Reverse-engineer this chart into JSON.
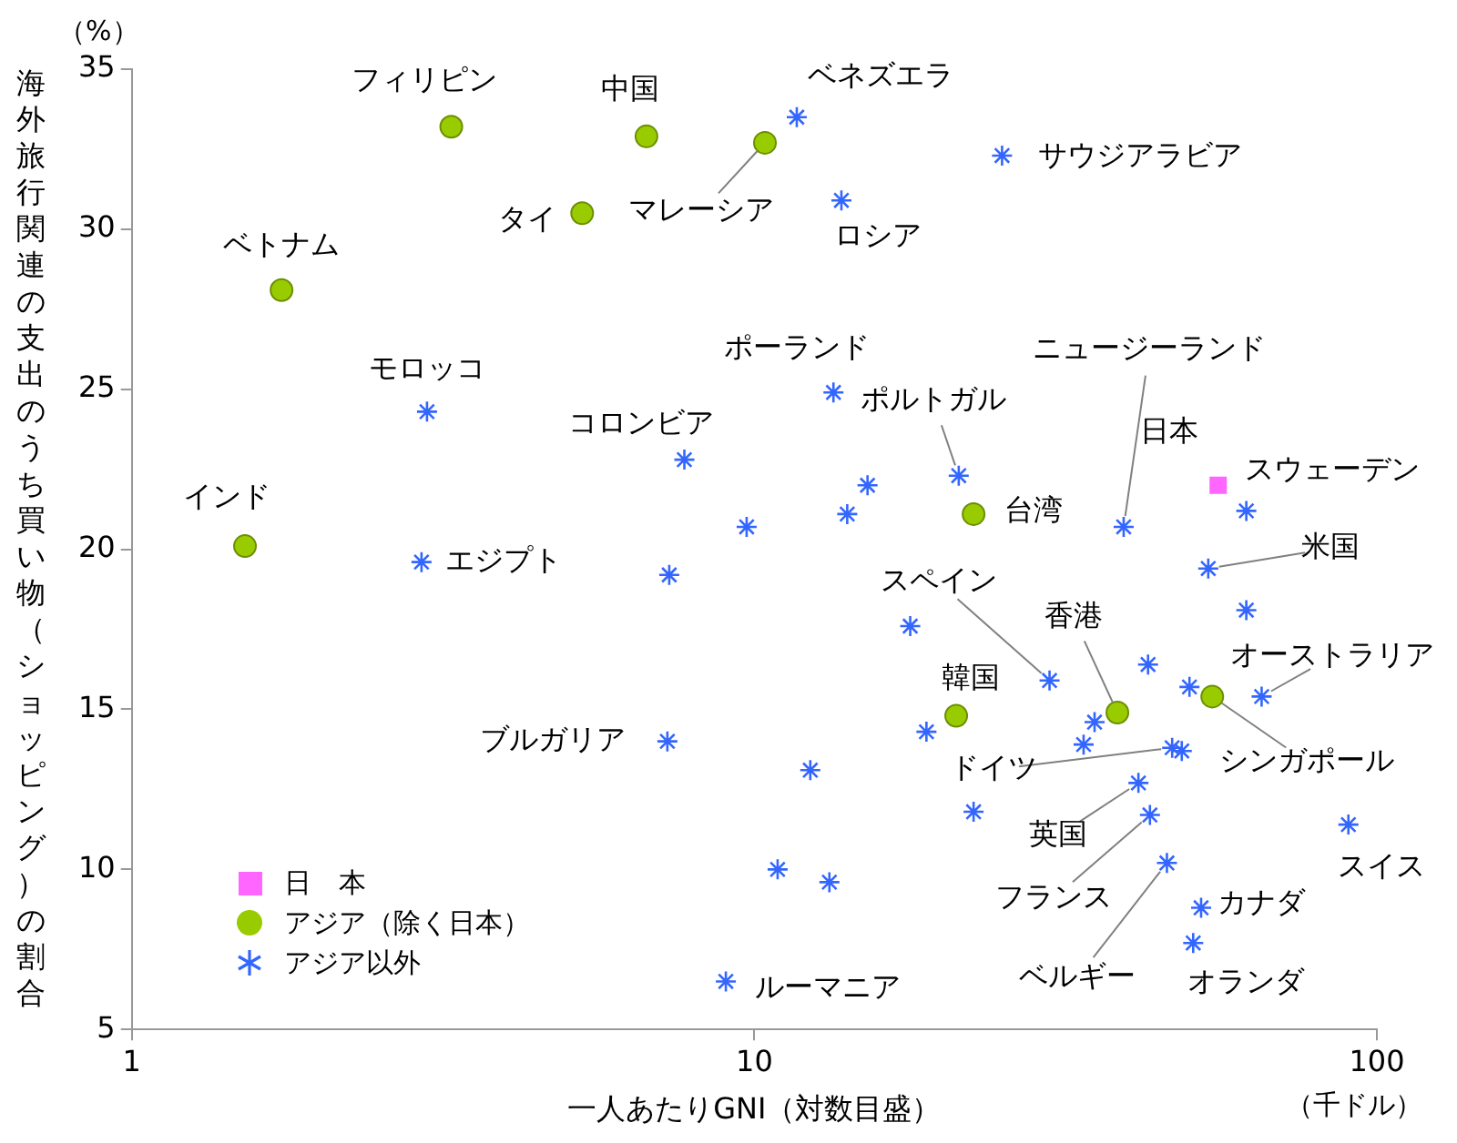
{
  "chart_data": {
    "type": "scatter",
    "xlabel": "一人あたりGNI（対数目盛）",
    "ylabel": "海外旅行関連の支出のうち買い物（ショッピング）の割合",
    "log": "x",
    "xlim": [
      1,
      100
    ],
    "xticks": [
      1,
      10,
      100
    ],
    "ylim": [
      5,
      35
    ],
    "yticks": [
      5,
      10,
      15,
      20,
      25,
      30,
      35
    ],
    "grid": false,
    "legend": "bottom left",
    "series": [
      {
        "name": "日　本",
        "color": "#ff66ff",
        "marker": "square",
        "x": [
          55.6
        ],
        "values": [
          22.0
        ]
      },
      {
        "name": "アジア（除く日本）",
        "color": "#99cc00",
        "marker": "circle",
        "x": [
          3.26,
          6.71,
          10.4,
          5.29,
          1.74,
          1.52,
          22.5,
          21.1,
          38.3,
          54.4
        ],
        "values": [
          33.2,
          32.9,
          32.7,
          30.5,
          28.1,
          20.1,
          21.1,
          14.8,
          14.9,
          15.4
        ]
      },
      {
        "name": "アジア以外",
        "color": "#3366ff",
        "marker": "cross",
        "x": [
          11.7,
          25.0,
          13.8,
          2.98,
          7.72,
          2.92,
          7.3,
          13.4,
          21.3,
          15.2,
          14.1,
          9.72,
          39.2,
          61.7,
          53.6,
          61.7,
          17.8,
          29.8,
          42.9,
          50.0,
          65.3,
          35.2,
          33.8,
          46.9,
          48.6,
          41.4,
          43.2,
          46.0,
          52.2,
          50.7,
          90.0,
          18.9,
          12.3,
          22.5,
          10.9,
          13.2,
          9.0,
          7.25
        ],
        "values": [
          33.5,
          32.3,
          30.9,
          24.3,
          22.8,
          19.6,
          19.2,
          24.9,
          22.3,
          22.0,
          21.1,
          20.7,
          20.7,
          21.2,
          19.4,
          18.1,
          17.6,
          15.9,
          16.4,
          15.7,
          15.4,
          14.6,
          13.9,
          13.8,
          13.7,
          12.7,
          11.7,
          10.2,
          8.8,
          7.7,
          11.4,
          14.3,
          13.1,
          11.8,
          10.0,
          9.6,
          6.5,
          14.0
        ]
      }
    ],
    "annotations": [
      {
        "text": "フィリピン",
        "x": 3.26,
        "y": 33.2
      },
      {
        "text": "中国",
        "x": 6.71,
        "y": 32.9
      },
      {
        "text": "ベネズエラ",
        "x": 11.7,
        "y": 33.5
      },
      {
        "text": "マレーシア",
        "x": 10.4,
        "y": 32.7
      },
      {
        "text": "タイ",
        "x": 5.29,
        "y": 30.5
      },
      {
        "text": "ロシア",
        "x": 13.8,
        "y": 30.9
      },
      {
        "text": "サウジアラビア",
        "x": 25.0,
        "y": 32.3
      },
      {
        "text": "ベトナム",
        "x": 1.74,
        "y": 28.1
      },
      {
        "text": "モロッコ",
        "x": 2.98,
        "y": 24.3
      },
      {
        "text": "ポーランド",
        "x": 13.4,
        "y": 24.9
      },
      {
        "text": "ニュージーランド",
        "x": 39.2,
        "y": 20.7
      },
      {
        "text": "コロンビア",
        "x": 7.72,
        "y": 22.8
      },
      {
        "text": "ポルトガル",
        "x": 21.3,
        "y": 22.3
      },
      {
        "text": "日本",
        "x": 55.6,
        "y": 22.0
      },
      {
        "text": "スウェーデン",
        "x": 61.7,
        "y": 21.2
      },
      {
        "text": "インド",
        "x": 1.52,
        "y": 20.1
      },
      {
        "text": "台湾",
        "x": 22.5,
        "y": 21.1
      },
      {
        "text": "米国",
        "x": 53.6,
        "y": 19.4
      },
      {
        "text": "エジプト",
        "x": 2.92,
        "y": 19.6
      },
      {
        "text": "スペイン",
        "x": 29.8,
        "y": 15.9
      },
      {
        "text": "香港",
        "x": 38.3,
        "y": 14.9
      },
      {
        "text": "韓国",
        "x": 21.1,
        "y": 14.8
      },
      {
        "text": "オーストラリア",
        "x": 65.3,
        "y": 15.4
      },
      {
        "text": "ブルガリア",
        "x": 7.25,
        "y": 14.0
      },
      {
        "text": "ドイツ",
        "x": 46.9,
        "y": 13.8
      },
      {
        "text": "シンガポール",
        "x": 54.4,
        "y": 15.4
      },
      {
        "text": "英国",
        "x": 41.4,
        "y": 12.7
      },
      {
        "text": "スイス",
        "x": 90.0,
        "y": 11.4
      },
      {
        "text": "カナダ",
        "x": 52.2,
        "y": 8.8
      },
      {
        "text": "フランス",
        "x": 43.2,
        "y": 11.7
      },
      {
        "text": "オランダ",
        "x": 50.7,
        "y": 7.7
      },
      {
        "text": "ベルギー",
        "x": 46.0,
        "y": 10.2
      },
      {
        "text": "ルーマニア",
        "x": 9.0,
        "y": 6.5
      },
      "（%）",
      "（千ドル）"
    ]
  }
}
